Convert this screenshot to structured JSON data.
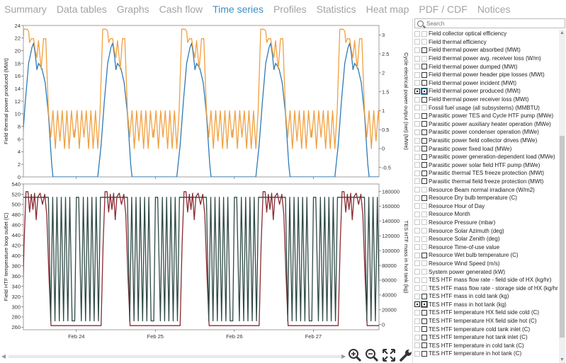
{
  "tabs": [
    {
      "label": "Summary",
      "active": false
    },
    {
      "label": "Data tables",
      "active": false
    },
    {
      "label": "Graphs",
      "active": false
    },
    {
      "label": "Cash flow",
      "active": false
    },
    {
      "label": "Time series",
      "active": true
    },
    {
      "label": "Profiles",
      "active": false
    },
    {
      "label": "Statistics",
      "active": false
    },
    {
      "label": "Heat map",
      "active": false
    },
    {
      "label": "PDF / CDF",
      "active": false
    },
    {
      "label": "Notices",
      "active": false
    }
  ],
  "search": {
    "placeholder": "Search",
    "value": ""
  },
  "variables": [
    {
      "label": "Field collector optical efficiency",
      "check": "light"
    },
    {
      "label": "Field thermal efficiency",
      "check": "light"
    },
    {
      "label": "Field thermal power absorbed (MWt)",
      "check": "dark"
    },
    {
      "label": "Field thermal power avg. receiver loss (W/m)",
      "check": "light"
    },
    {
      "label": "Field thermal power dumped (MWt)",
      "check": "dark"
    },
    {
      "label": "Field thermal power header pipe losses (MWt)",
      "check": "dark"
    },
    {
      "label": "Field thermal power incident (MWt)",
      "check": "dark"
    },
    {
      "label": "Field thermal power produced (MWt)",
      "check": "checked-selected"
    },
    {
      "label": "Field thermal power receiver loss (MWt)",
      "check": "dark"
    },
    {
      "label": "Fossil fuel usage (all subsystems) (MMBTU)",
      "check": "light"
    },
    {
      "label": "Parasitic power TES and Cycle HTF pump (MWe)",
      "check": "dark"
    },
    {
      "label": "Parasitic power auxiliary heater operation (MWe)",
      "check": "dark"
    },
    {
      "label": "Parasitic power condenser operation (MWe)",
      "check": "dark"
    },
    {
      "label": "Parasitic power field collector drives (MWe)",
      "check": "dark"
    },
    {
      "label": "Parasitic power fixed load (MWe)",
      "check": "dark"
    },
    {
      "label": "Parasitic power generation-dependent load (MWe)",
      "check": "dark"
    },
    {
      "label": "Parasitic power solar field HTF pump (MWe)",
      "check": "dark"
    },
    {
      "label": "Parasitic thermal TES freeze protection (MWt)",
      "check": "dark"
    },
    {
      "label": "Parasitic thermal field freeze protection (MWt)",
      "check": "dark"
    },
    {
      "label": "Resource Beam normal irradiance (W/m2)",
      "check": "light"
    },
    {
      "label": "Resource Dry bulb temperature (C)",
      "check": "dark"
    },
    {
      "label": "Resource Hour of Day",
      "check": "light"
    },
    {
      "label": "Resource Month",
      "check": "light"
    },
    {
      "label": "Resource Pressure (mbar)",
      "check": "light"
    },
    {
      "label": "Resource Solar Azimuth (deg)",
      "check": "light"
    },
    {
      "label": "Resource Solar Zenith (deg)",
      "check": "light"
    },
    {
      "label": "Resource Time-of-use value",
      "check": "light"
    },
    {
      "label": "Resource Wet bulb temperature (C)",
      "check": "dark"
    },
    {
      "label": "Resource Wind Speed (m/s)",
      "check": "light"
    },
    {
      "label": "System power generated (kW)",
      "check": "light"
    },
    {
      "label": "TES HTF mass flow rate - field side of HX (kg/hr)",
      "check": "light"
    },
    {
      "label": "TES HTF mass flow rate - storage side of HX (kg/hr)",
      "check": "light"
    },
    {
      "label": "TES HTF mass in cold tank (kg)",
      "check": "dark"
    },
    {
      "label": "TES HTF mass in hot tank (kg)",
      "check": "checked-selected"
    },
    {
      "label": "TES HTF temperature HX field side cold (C)",
      "check": "dark"
    },
    {
      "label": "TES HTF temperature HX field side hot (C)",
      "check": "dark"
    },
    {
      "label": "TES HTF temperature cold tank inlet (C)",
      "check": "dark"
    },
    {
      "label": "TES HTF temperature hot tank inlet (C)",
      "check": "dark"
    },
    {
      "label": "TES HTF temperature in cold tank (C)",
      "check": "dark"
    },
    {
      "label": "TES HTF temperature in hot tank (C)",
      "check": "dark"
    }
  ],
  "tools": [
    {
      "name": "zoom-in-icon"
    },
    {
      "name": "zoom-out-icon"
    },
    {
      "name": "fit-to-window-icon"
    },
    {
      "name": "settings-wrench-icon"
    }
  ],
  "colors": {
    "accent": "#3c8ec4",
    "series_blue": "#2c7bb6",
    "series_orange": "#f0a040",
    "series_red": "#8b2a33",
    "series_dark": "#2f4a45"
  },
  "chart_data": [
    {
      "type": "line",
      "ylabel": "Field thermal power produced (MWt)",
      "y2label": "Cycle electrical power output (net) (MWe)",
      "ylim": [
        0,
        24
      ],
      "yticks": [
        0,
        2,
        4,
        6,
        8,
        10,
        12,
        14,
        16,
        18,
        20,
        22,
        24
      ],
      "y2lim": [
        -0.75,
        3.25
      ],
      "y2ticks": [
        -0.5,
        0,
        0.5,
        1,
        1.5,
        2,
        2.5,
        3
      ],
      "xlim_days": [
        23.35,
        27.85
      ],
      "xticks": [
        {
          "label": "Feb 24",
          "day": 24
        },
        {
          "label": "Feb 25",
          "day": 25
        },
        {
          "label": "Feb 26",
          "day": 26
        },
        {
          "label": "Feb 27",
          "day": 27
        }
      ],
      "series": [
        {
          "axis": "left",
          "color": "#2c7bb6",
          "day_profile": [
            [
              0,
              0
            ],
            [
              7,
              0
            ],
            [
              8,
              5
            ],
            [
              9,
              12
            ],
            [
              10,
              18
            ],
            [
              11,
              20.5
            ],
            [
              11.5,
              21.2
            ],
            [
              12,
              19.5
            ],
            [
              12.5,
              17
            ],
            [
              13,
              18
            ],
            [
              14,
              17.2
            ],
            [
              15,
              15
            ],
            [
              16,
              10
            ],
            [
              17,
              2
            ],
            [
              17.4,
              0
            ],
            [
              24,
              0
            ]
          ]
        },
        {
          "axis": "right",
          "color": "#f0a040",
          "day_profile": [
            [
              0,
              0.3
            ],
            [
              0.7,
              1
            ],
            [
              1.4,
              0
            ],
            [
              2.1,
              1
            ],
            [
              2.8,
              0.3
            ],
            [
              3.5,
              1
            ],
            [
              4.2,
              0
            ],
            [
              4.9,
              1
            ],
            [
              5.6,
              0
            ],
            [
              6.3,
              1
            ],
            [
              7,
              0
            ],
            [
              7.7,
              1
            ],
            [
              8.5,
              3.15
            ],
            [
              9.5,
              3.15
            ],
            [
              10,
              3.1
            ],
            [
              10.3,
              2.8
            ],
            [
              10.8,
              2.9
            ],
            [
              11.5,
              2.9
            ],
            [
              12,
              2.6
            ],
            [
              12.5,
              2.4
            ],
            [
              13,
              2.85
            ],
            [
              13.8,
              2.1
            ],
            [
              14.5,
              2.9
            ],
            [
              15.2,
              2.9
            ],
            [
              16,
              1
            ],
            [
              16.7,
              0.3
            ],
            [
              17.4,
              1
            ],
            [
              18.1,
              0
            ],
            [
              18.8,
              1
            ],
            [
              19.5,
              0.2
            ],
            [
              20.2,
              1
            ],
            [
              20.9,
              0
            ],
            [
              21.6,
              1
            ],
            [
              22.3,
              0
            ],
            [
              23,
              1
            ],
            [
              23.7,
              0.3
            ],
            [
              24,
              0.5
            ]
          ]
        }
      ]
    },
    {
      "type": "line",
      "ylabel": "Field HTF temperature loop outlet (C)",
      "y2label": "TES HTF mass in hot tank (kg)",
      "ylim": [
        255,
        540
      ],
      "yticks": [
        260,
        280,
        300,
        320,
        340,
        360,
        380,
        400,
        420,
        440,
        460,
        480,
        500,
        520,
        540
      ],
      "y2lim": [
        -7000,
        190000
      ],
      "y2ticks": [
        0,
        20000,
        40000,
        60000,
        80000,
        100000,
        120000,
        140000,
        160000,
        180000
      ],
      "xlim_days": [
        23.35,
        27.85
      ],
      "xticks": [
        {
          "label": "Feb 24",
          "day": 24
        },
        {
          "label": "Feb 25",
          "day": 25
        },
        {
          "label": "Feb 26",
          "day": 26
        },
        {
          "label": "Feb 27",
          "day": 27
        }
      ],
      "series": [
        {
          "axis": "left",
          "color": "#8b2a33",
          "day_profile": [
            [
              0,
              263
            ],
            [
              8,
              263
            ],
            [
              8.6,
              420
            ],
            [
              9.2,
              525
            ],
            [
              9.8,
              525
            ],
            [
              10.3,
              485
            ],
            [
              10.8,
              520
            ],
            [
              11.3,
              490
            ],
            [
              11.8,
              522
            ],
            [
              12.3,
              470
            ],
            [
              12.8,
              515
            ],
            [
              13.5,
              522
            ],
            [
              14.2,
              500
            ],
            [
              14.9,
              520
            ],
            [
              15.5,
              480
            ],
            [
              16.1,
              370
            ],
            [
              16.8,
              263
            ],
            [
              24,
              263
            ]
          ]
        },
        {
          "axis": "right",
          "color": "#2f4a45",
          "day_profile": [
            [
              0,
              5000
            ],
            [
              0.5,
              172000
            ],
            [
              1.2,
              172000
            ],
            [
              2,
              5000
            ],
            [
              2.6,
              172000
            ],
            [
              3.3,
              5000
            ],
            [
              3.9,
              172000
            ],
            [
              4.6,
              5000
            ],
            [
              5.2,
              172000
            ],
            [
              5.9,
              5000
            ],
            [
              6.5,
              172000
            ],
            [
              7.2,
              5000
            ],
            [
              7.8,
              172000
            ],
            [
              8.6,
              172000
            ],
            [
              9.3,
              172000
            ],
            [
              16,
              172000
            ],
            [
              16.7,
              5000
            ],
            [
              17.3,
              172000
            ],
            [
              18,
              5000
            ],
            [
              18.6,
              172000
            ],
            [
              19.3,
              5000
            ],
            [
              19.9,
              172000
            ],
            [
              20.6,
              5000
            ],
            [
              21.2,
              172000
            ],
            [
              21.9,
              5000
            ],
            [
              22.5,
              172000
            ],
            [
              23.2,
              5000
            ],
            [
              24,
              5000
            ]
          ]
        }
      ]
    }
  ]
}
